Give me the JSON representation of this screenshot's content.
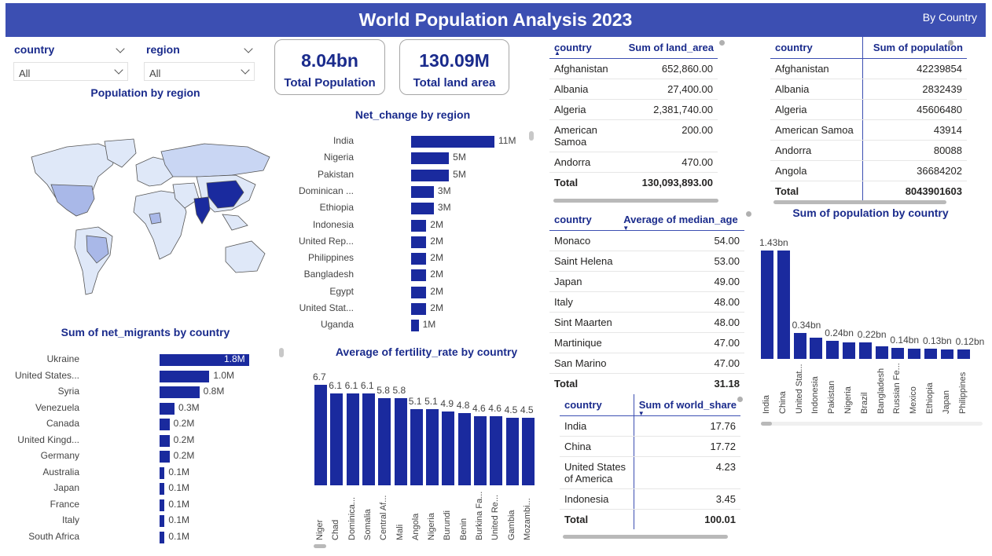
{
  "header": {
    "title": "World Population Analysis 2023",
    "subtitle": "By Country"
  },
  "slicers": [
    {
      "label": "country",
      "value": "All"
    },
    {
      "label": "region",
      "value": "All"
    }
  ],
  "cards": [
    {
      "value": "8.04bn",
      "label": "Total Population"
    },
    {
      "value": "130.09M",
      "label": "Total land area"
    }
  ],
  "map": {
    "title": "Population by region"
  },
  "net_change": {
    "title": "Net_change by region",
    "categories": [
      "India",
      "Nigeria",
      "Pakistan",
      "Dominican ...",
      "Ethiopia",
      "Indonesia",
      "United Rep...",
      "Philippines",
      "Bangladesh",
      "Egypt",
      "United Stat...",
      "Uganda"
    ],
    "values": [
      11,
      5,
      5,
      3,
      3,
      2,
      2,
      2,
      2,
      2,
      2,
      1
    ],
    "labels": [
      "11M",
      "5M",
      "5M",
      "3M",
      "3M",
      "2M",
      "2M",
      "2M",
      "2M",
      "2M",
      "2M",
      "1M"
    ]
  },
  "net_migrants": {
    "title": "Sum of net_migrants by country",
    "categories": [
      "Ukraine",
      "United States...",
      "Syria",
      "Venezuela",
      "Canada",
      "United Kingd...",
      "Germany",
      "Australia",
      "Japan",
      "France",
      "Italy",
      "South Africa"
    ],
    "values": [
      1.8,
      1.0,
      0.8,
      0.3,
      0.2,
      0.2,
      0.2,
      0.1,
      0.1,
      0.1,
      0.1,
      0.1
    ],
    "labels": [
      "1.8M",
      "1.0M",
      "0.8M",
      "0.3M",
      "0.2M",
      "0.2M",
      "0.2M",
      "0.1M",
      "0.1M",
      "0.1M",
      "0.1M",
      "0.1M"
    ]
  },
  "fertility": {
    "title": "Average of fertility_rate by country",
    "categories": [
      "Niger",
      "Chad",
      "Dominica...",
      "Somalia",
      "Central Af...",
      "Mali",
      "Angola",
      "Nigeria",
      "Burundi",
      "Benin",
      "Burkina Fa...",
      "United Re...",
      "Gambia",
      "Mozambi..."
    ],
    "values": [
      6.7,
      6.1,
      6.1,
      6.1,
      5.8,
      5.8,
      5.1,
      5.1,
      4.9,
      4.8,
      4.6,
      4.6,
      4.5,
      4.5
    ],
    "labels": [
      "6.7",
      "6.1",
      "6.1",
      "6.1",
      "5.8",
      "5.8",
      "5.1",
      "5.1",
      "4.9",
      "4.8",
      "4.6",
      "4.6",
      "4.5",
      "4.5"
    ]
  },
  "land_table": {
    "headers": [
      "country",
      "Sum of land_area"
    ],
    "rows": [
      [
        "Afghanistan",
        "652,860.00"
      ],
      [
        "Albania",
        "27,400.00"
      ],
      [
        "Algeria",
        "2,381,740.00"
      ],
      [
        "American Samoa",
        "200.00"
      ],
      [
        "Andorra",
        "470.00"
      ]
    ],
    "total": [
      "Total",
      "130,093,893.00"
    ]
  },
  "pop_table": {
    "headers": [
      "country",
      "Sum of population"
    ],
    "rows": [
      [
        "Afghanistan",
        "42239854"
      ],
      [
        "Albania",
        "2832439"
      ],
      [
        "Algeria",
        "45606480"
      ],
      [
        "American Samoa",
        "43914"
      ],
      [
        "Andorra",
        "80088"
      ],
      [
        "Angola",
        "36684202"
      ]
    ],
    "total": [
      "Total",
      "8043901603"
    ]
  },
  "median_table": {
    "headers": [
      "country",
      "Average of median_age"
    ],
    "rows": [
      [
        "Monaco",
        "54.00"
      ],
      [
        "Saint Helena",
        "53.00"
      ],
      [
        "Japan",
        "49.00"
      ],
      [
        "Italy",
        "48.00"
      ],
      [
        "Sint Maarten",
        "48.00"
      ],
      [
        "Martinique",
        "47.00"
      ],
      [
        "San Marino",
        "47.00"
      ]
    ],
    "total": [
      "Total",
      "31.18"
    ]
  },
  "share_table": {
    "headers": [
      "country",
      "Sum of world_share"
    ],
    "rows": [
      [
        "India",
        "17.76"
      ],
      [
        "China",
        "17.72"
      ],
      [
        "United States of America",
        "4.23"
      ],
      [
        "Indonesia",
        "3.45"
      ]
    ],
    "total": [
      "Total",
      "100.01"
    ]
  },
  "pop_chart": {
    "title": "Sum of population by country",
    "categories": [
      "India",
      "China",
      "United Stat...",
      "Indonesia",
      "Pakistan",
      "Nigeria",
      "Brazil",
      "Bangladesh",
      "Russian Fe...",
      "Mexico",
      "Ethiopia",
      "Japan",
      "Philippines"
    ],
    "values": [
      1.43,
      1.43,
      0.34,
      0.28,
      0.24,
      0.22,
      0.22,
      0.17,
      0.14,
      0.13,
      0.13,
      0.12,
      0.12
    ],
    "labels": [
      "1.43bn",
      "",
      "0.34bn",
      "",
      "0.24bn",
      "",
      "0.22bn",
      "",
      "0.14bn",
      "",
      "0.13bn",
      "",
      "0.12bn"
    ]
  },
  "chart_data": [
    {
      "type": "bar",
      "title": "Net_change by region",
      "categories": [
        "India",
        "Nigeria",
        "Pakistan",
        "Dominican ...",
        "Ethiopia",
        "Indonesia",
        "United Rep...",
        "Philippines",
        "Bangladesh",
        "Egypt",
        "United Stat...",
        "Uganda"
      ],
      "values": [
        11,
        5,
        5,
        3,
        3,
        2,
        2,
        2,
        2,
        2,
        2,
        1
      ],
      "unit": "M"
    },
    {
      "type": "bar",
      "title": "Sum of net_migrants by country",
      "categories": [
        "Ukraine",
        "United States...",
        "Syria",
        "Venezuela",
        "Canada",
        "United Kingd...",
        "Germany",
        "Australia",
        "Japan",
        "France",
        "Italy",
        "South Africa"
      ],
      "values": [
        1.8,
        1.0,
        0.8,
        0.3,
        0.2,
        0.2,
        0.2,
        0.1,
        0.1,
        0.1,
        0.1,
        0.1
      ],
      "unit": "M"
    },
    {
      "type": "bar",
      "title": "Average of fertility_rate by country",
      "categories": [
        "Niger",
        "Chad",
        "Dominica...",
        "Somalia",
        "Central Af...",
        "Mali",
        "Angola",
        "Nigeria",
        "Burundi",
        "Benin",
        "Burkina Fa...",
        "United Re...",
        "Gambia",
        "Mozambi..."
      ],
      "values": [
        6.7,
        6.1,
        6.1,
        6.1,
        5.8,
        5.8,
        5.1,
        5.1,
        4.9,
        4.8,
        4.6,
        4.6,
        4.5,
        4.5
      ]
    },
    {
      "type": "bar",
      "title": "Sum of population by country",
      "categories": [
        "India",
        "China",
        "United Stat...",
        "Indonesia",
        "Pakistan",
        "Nigeria",
        "Brazil",
        "Bangladesh",
        "Russian Fe...",
        "Mexico",
        "Ethiopia",
        "Japan",
        "Philippines"
      ],
      "values": [
        1.43,
        1.43,
        0.34,
        0.28,
        0.24,
        0.22,
        0.22,
        0.17,
        0.14,
        0.13,
        0.13,
        0.12,
        0.12
      ],
      "unit": "bn"
    }
  ],
  "colors": {
    "header": "#3c4fb2",
    "bar": "#1a2a9e",
    "title_text": "#1a2b8c",
    "map_high": "#1a2a9e",
    "map_mid": "#a9b8e8",
    "map_low": "#dfe8f8"
  }
}
